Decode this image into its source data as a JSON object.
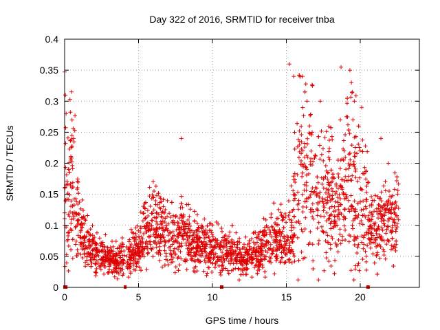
{
  "chart_data": {
    "type": "scatter",
    "title": "Day 322 of 2016, SRMTID for receiver tnba",
    "xlabel": "GPS time / hours",
    "ylabel": "SRMTID / TECUs",
    "xlim": [
      0,
      24
    ],
    "ylim": [
      0,
      0.4
    ],
    "xticks": [
      0,
      5,
      10,
      15,
      20
    ],
    "xtick_labels": [
      "0",
      "5",
      "10",
      "15",
      "20"
    ],
    "yticks": [
      0,
      0.05,
      0.1,
      0.15,
      0.2,
      0.25,
      0.3,
      0.35,
      0.4
    ],
    "ytick_labels": [
      "0",
      "0.05",
      "0.1",
      "0.15",
      "0.2",
      "0.25",
      "0.3",
      "0.35",
      "0.4"
    ],
    "grid": true,
    "marker": "+",
    "color": "#e00000",
    "series": [
      {
        "name": "SRMTID",
        "profile": [
          [
            0.0,
            0.16
          ],
          [
            0.3,
            0.14
          ],
          [
            0.5,
            0.15
          ],
          [
            0.7,
            0.13
          ],
          [
            1.0,
            0.1
          ],
          [
            1.2,
            0.08
          ],
          [
            1.5,
            0.065
          ],
          [
            2.0,
            0.055
          ],
          [
            2.5,
            0.048
          ],
          [
            3.0,
            0.043
          ],
          [
            3.5,
            0.042
          ],
          [
            4.0,
            0.047
          ],
          [
            4.5,
            0.052
          ],
          [
            5.0,
            0.062
          ],
          [
            5.5,
            0.085
          ],
          [
            6.0,
            0.1
          ],
          [
            6.5,
            0.095
          ],
          [
            7.0,
            0.085
          ],
          [
            7.5,
            0.08
          ],
          [
            8.0,
            0.09
          ],
          [
            8.5,
            0.075
          ],
          [
            9.0,
            0.07
          ],
          [
            9.5,
            0.065
          ],
          [
            10.0,
            0.065
          ],
          [
            10.5,
            0.06
          ],
          [
            11.0,
            0.055
          ],
          [
            11.5,
            0.055
          ],
          [
            12.0,
            0.045
          ],
          [
            12.5,
            0.045
          ],
          [
            13.0,
            0.055
          ],
          [
            13.5,
            0.065
          ],
          [
            14.0,
            0.07
          ],
          [
            14.5,
            0.075
          ],
          [
            15.0,
            0.07
          ],
          [
            15.4,
            0.09
          ],
          [
            15.7,
            0.15
          ],
          [
            16.0,
            0.17
          ],
          [
            16.5,
            0.16
          ],
          [
            17.0,
            0.14
          ],
          [
            17.5,
            0.13
          ],
          [
            18.0,
            0.12
          ],
          [
            18.5,
            0.12
          ],
          [
            19.0,
            0.14
          ],
          [
            19.5,
            0.16
          ],
          [
            20.0,
            0.14
          ],
          [
            20.5,
            0.1
          ],
          [
            21.0,
            0.09
          ],
          [
            21.5,
            0.1
          ],
          [
            22.0,
            0.1
          ],
          [
            22.6,
            0.11
          ]
        ],
        "peaks": [
          [
            0.05,
            0.31
          ],
          [
            0.1,
            0.28
          ],
          [
            0.5,
            0.27
          ],
          [
            0.6,
            0.24
          ],
          [
            7.9,
            0.24
          ],
          [
            15.2,
            0.36
          ],
          [
            15.5,
            0.34
          ],
          [
            16.1,
            0.34
          ],
          [
            16.4,
            0.3
          ],
          [
            17.3,
            0.3
          ],
          [
            18.7,
            0.355
          ],
          [
            19.3,
            0.35
          ],
          [
            19.4,
            0.33
          ],
          [
            19.6,
            0.3
          ],
          [
            20.1,
            0.29
          ],
          [
            21.4,
            0.24
          ],
          [
            21.9,
            0.2
          ]
        ],
        "zero_points": [
          0.0,
          0.1,
          4.1,
          10.6,
          10.65,
          20.5,
          20.55
        ]
      }
    ]
  }
}
